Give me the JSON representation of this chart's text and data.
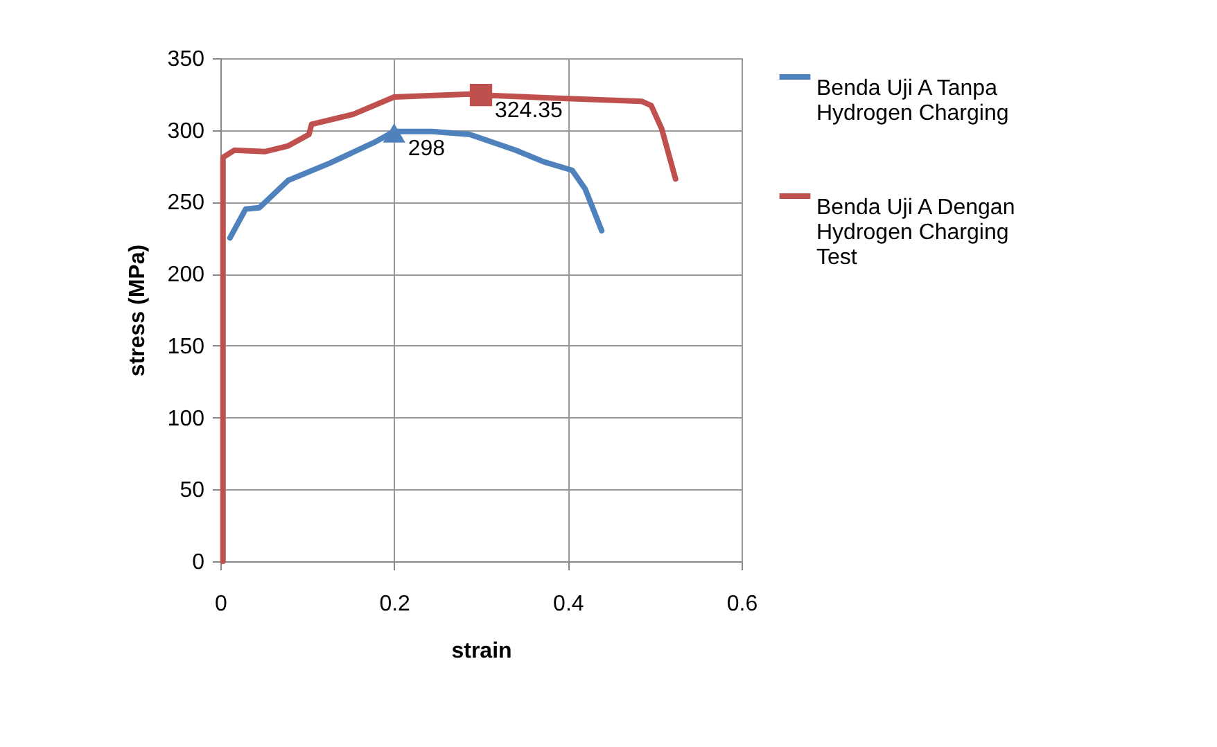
{
  "chart_data": {
    "type": "line",
    "xlabel": "strain",
    "ylabel": "stress (MPa)",
    "xlim": [
      0,
      0.6
    ],
    "xticks": [
      0,
      0.2,
      0.4,
      0.6
    ],
    "ylim": [
      0,
      350
    ],
    "yticks": [
      0,
      50,
      100,
      150,
      200,
      250,
      300,
      350
    ],
    "grid": true,
    "legend": "right",
    "line_style": "solid",
    "marker": "none",
    "series": [
      {
        "name": "Benda Uji A Tanpa Hydrogen Charging",
        "color": "#4f81bd",
        "x": [
          0.011,
          0.029,
          0.045,
          0.078,
          0.126,
          0.179,
          0.2,
          0.244,
          0.287,
          0.34,
          0.372,
          0.405,
          0.42,
          0.439
        ],
        "values": [
          225,
          245,
          246,
          265,
          277,
          292,
          299,
          299,
          297,
          286,
          278,
          272,
          259,
          230
        ]
      },
      {
        "name": "Benda Uji A Dengan Hydrogen Charging Test",
        "color": "#c0504d",
        "x": [
          0.003,
          0.003,
          0.016,
          0.051,
          0.078,
          0.102,
          0.105,
          0.153,
          0.2,
          0.287,
          0.3,
          0.394,
          0.485,
          0.496,
          0.508,
          0.524
        ],
        "values": [
          0,
          281,
          286,
          285,
          289,
          297,
          304,
          311,
          323,
          325,
          324.35,
          322,
          320,
          317,
          301,
          266
        ]
      },
      {
        "type": "scatter",
        "marker": "triangle",
        "color": "#4f81bd",
        "x": [
          0.2
        ],
        "values": [
          298
        ],
        "value_labels": [
          "298"
        ]
      },
      {
        "type": "scatter",
        "marker": "square",
        "color": "#c0504d",
        "x": [
          0.3
        ],
        "values": [
          324.35
        ],
        "value_labels": [
          "324.35"
        ]
      }
    ]
  }
}
